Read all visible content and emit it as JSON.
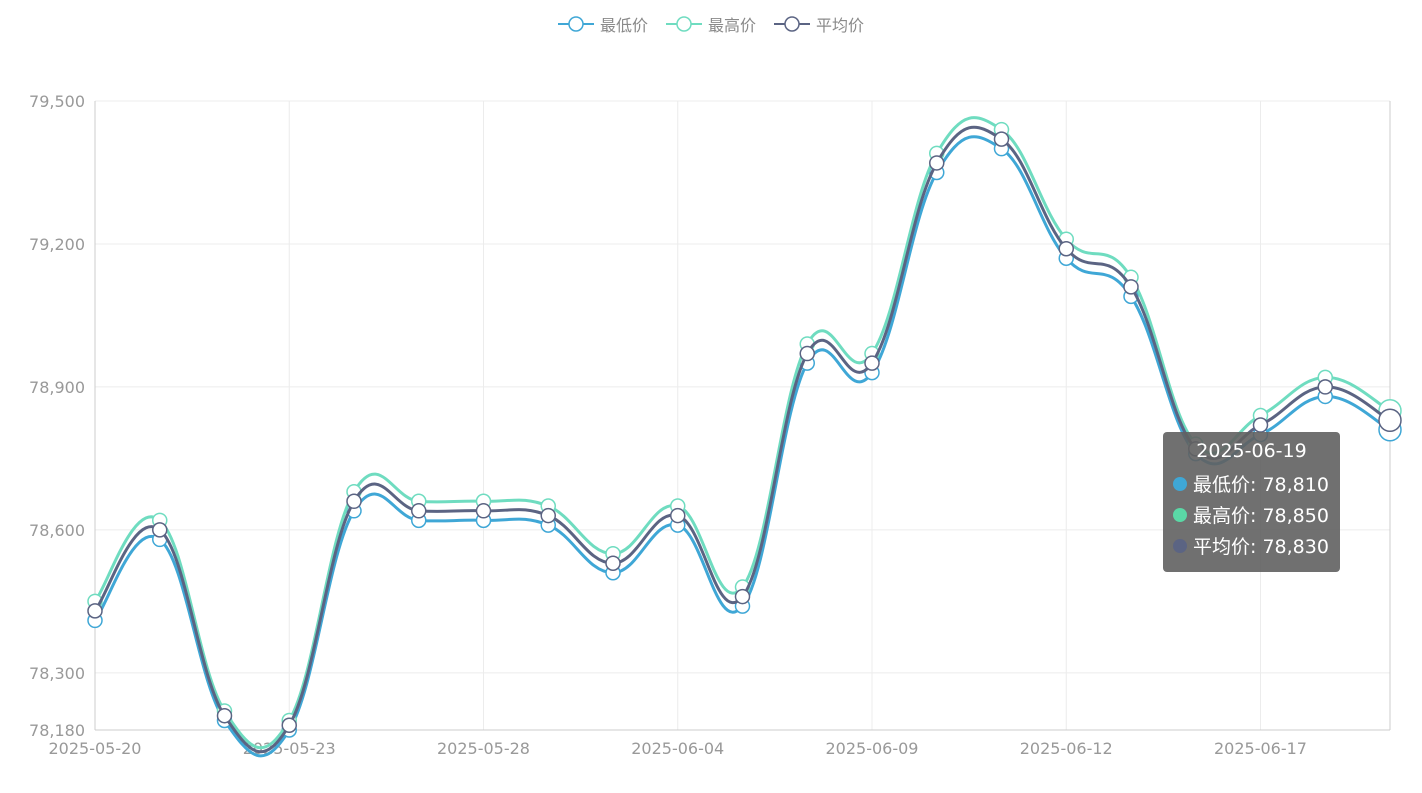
{
  "legend": [
    {
      "name": "最低价",
      "color": "#3fa7d6"
    },
    {
      "name": "最高价",
      "color": "#6fdcc0"
    },
    {
      "name": "平均价",
      "color": "#5b6483"
    }
  ],
  "tooltip": {
    "date": "2025-06-19",
    "rows": [
      {
        "label": "最低价: 78,810",
        "color": "#3fa7d6"
      },
      {
        "label": "最高价: 78,850",
        "color": "#5ad8a6"
      },
      {
        "label": "平均价: 78,830",
        "color": "#5b6483"
      }
    ]
  },
  "chart_data": {
    "type": "line",
    "smooth": true,
    "x": [
      "2025-05-20",
      "2025-05-21",
      "2025-05-22",
      "2025-05-23",
      "2025-05-26",
      "2025-05-27",
      "2025-05-28",
      "2025-05-29",
      "2025-06-03",
      "2025-06-04",
      "2025-06-05",
      "2025-06-06",
      "2025-06-09",
      "2025-06-10",
      "2025-06-11",
      "2025-06-12",
      "2025-06-13",
      "2025-06-16",
      "2025-06-17",
      "2025-06-18",
      "2025-06-19"
    ],
    "x_tick_labels": [
      "2025-05-20",
      "2025-05-23",
      "2025-05-28",
      "2025-06-04",
      "2025-06-09",
      "2025-06-12",
      "2025-06-17"
    ],
    "y_ticks": [
      78180,
      78300,
      78600,
      78900,
      79200,
      79500
    ],
    "y_tick_labels": [
      "78,180",
      "78,300",
      "78,600",
      "78,900",
      "79,200",
      "79,500"
    ],
    "ylim": [
      78180,
      79500
    ],
    "grid": true,
    "legend_position": "top-center",
    "series": [
      {
        "name": "最低价",
        "color": "#3fa7d6",
        "values": [
          78410,
          78580,
          78200,
          78180,
          78640,
          78620,
          78620,
          78610,
          78510,
          78610,
          78440,
          78950,
          78930,
          79350,
          79400,
          79170,
          79090,
          78760,
          78800,
          78880,
          78810
        ]
      },
      {
        "name": "最高价",
        "color": "#6fdcc0",
        "values": [
          78450,
          78620,
          78220,
          78200,
          78680,
          78660,
          78660,
          78650,
          78550,
          78650,
          78480,
          78990,
          78970,
          79390,
          79440,
          79210,
          79130,
          78780,
          78840,
          78920,
          78850
        ]
      },
      {
        "name": "平均价",
        "color": "#5b6483",
        "values": [
          78430,
          78600,
          78210,
          78190,
          78660,
          78640,
          78640,
          78630,
          78530,
          78630,
          78460,
          78970,
          78950,
          79370,
          79420,
          79190,
          79110,
          78770,
          78820,
          78900,
          78830
        ]
      }
    ]
  }
}
